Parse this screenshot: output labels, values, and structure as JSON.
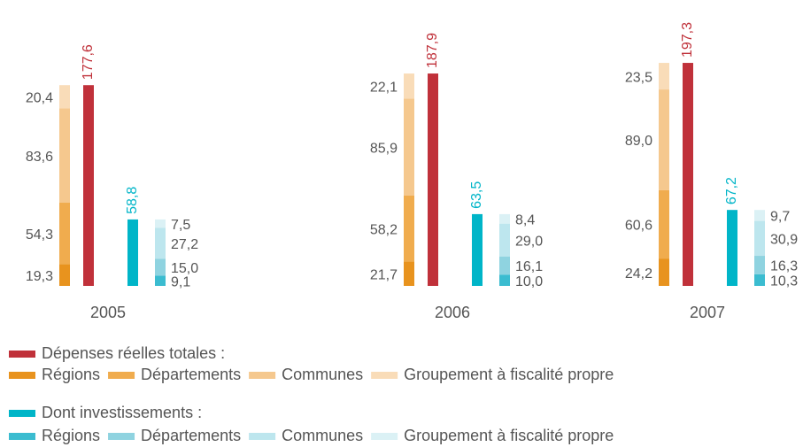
{
  "chart_data": {
    "type": "stacked_bar",
    "categories": [
      "2005",
      "2006",
      "2007"
    ],
    "groups": [
      {
        "name": "Dépenses réelles totales :",
        "color": "#c0313a",
        "values": [
          177.6,
          187.9,
          197.3
        ],
        "value_labels": [
          "177,6",
          "187,9",
          "197,3"
        ],
        "series": [
          {
            "name": "Régions",
            "color": "#e8931e",
            "values": [
              19.3,
              21.7,
              24.2
            ],
            "value_labels": [
              "19,3",
              "21,7",
              "24,2"
            ]
          },
          {
            "name": "Départements",
            "color": "#f0ac4e",
            "values": [
              54.3,
              58.2,
              60.6
            ],
            "value_labels": [
              "54,3",
              "58,2",
              "60,6"
            ]
          },
          {
            "name": "Communes",
            "color": "#f5c88e",
            "values": [
              83.6,
              85.9,
              89.0
            ],
            "value_labels": [
              "83,6",
              "85,9",
              "89,0"
            ]
          },
          {
            "name": "Groupement à fiscalité propre",
            "color": "#f9dcb8",
            "values": [
              20.4,
              22.1,
              23.5
            ],
            "value_labels": [
              "20,4",
              "22,1",
              "23,5"
            ]
          }
        ]
      },
      {
        "name": "Dont investissements :",
        "color": "#00b5c8",
        "values": [
          58.8,
          63.5,
          67.2
        ],
        "value_labels": [
          "58,8",
          "63,5",
          "67,2"
        ],
        "series": [
          {
            "name": "Régions",
            "color": "#3bbcd0",
            "values": [
              9.1,
              10.0,
              10.3
            ],
            "value_labels": [
              "9,1",
              "10,0",
              "10,3"
            ]
          },
          {
            "name": "Départements",
            "color": "#8fd3e0",
            "values": [
              15.0,
              16.1,
              16.3
            ],
            "value_labels": [
              "15,0",
              "16,1",
              "16,3"
            ]
          },
          {
            "name": "Communes",
            "color": "#bde6ee",
            "values": [
              27.2,
              29.0,
              30.9
            ],
            "value_labels": [
              "27,2",
              "29,0",
              "30,9"
            ]
          },
          {
            "name": "Groupement à fiscalité propre",
            "color": "#dbf1f5",
            "values": [
              7.5,
              8.4,
              9.7
            ],
            "value_labels": [
              "7,5",
              "8,4",
              "9,7"
            ]
          }
        ]
      }
    ]
  }
}
